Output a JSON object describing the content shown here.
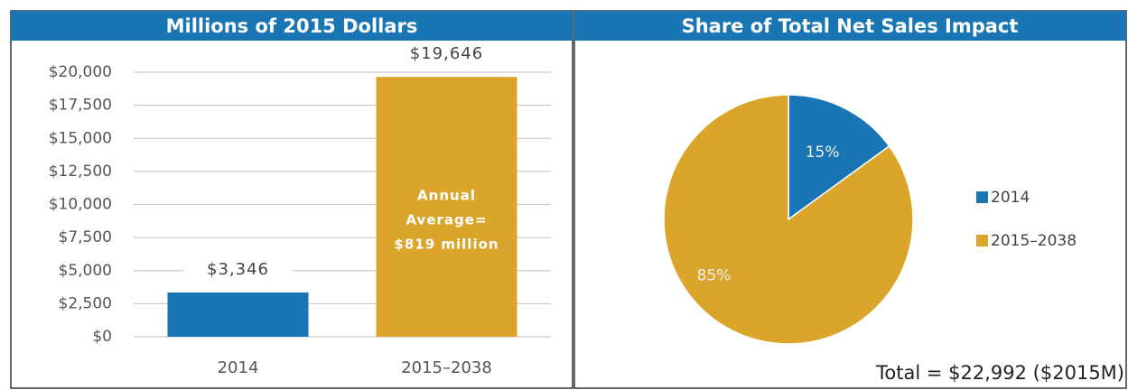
{
  "chart_data": [
    {
      "type": "bar",
      "title": "Millions of 2015 Dollars",
      "categories": [
        "2014",
        "2015–2038"
      ],
      "values": [
        3346,
        19646
      ],
      "value_labels": [
        "$3,346",
        "$19,646"
      ],
      "colors": [
        "#1a75b4",
        "#daa52a"
      ],
      "annotation_lines": [
        "Annual",
        "Average=",
        "$819 million"
      ],
      "ylim": [
        0,
        20000
      ],
      "yticks": [
        {
          "value": 0,
          "label": "$0"
        },
        {
          "value": 2500,
          "label": "$2,500"
        },
        {
          "value": 5000,
          "label": "$5,000"
        },
        {
          "value": 7500,
          "label": "$7,500"
        },
        {
          "value": 10000,
          "label": "$10,000"
        },
        {
          "value": 12500,
          "label": "$12,500"
        },
        {
          "value": 15000,
          "label": "$15,000"
        },
        {
          "value": 17500,
          "label": "$17,500"
        },
        {
          "value": 20000,
          "label": "$20,000"
        }
      ],
      "grid": true
    },
    {
      "type": "pie",
      "title": "Share of Total Net Sales Impact",
      "categories": [
        "2014",
        "2015–2038"
      ],
      "values": [
        15,
        85
      ],
      "value_labels": [
        "15%",
        "85%"
      ],
      "colors": [
        "#1a75b4",
        "#daa52a"
      ],
      "annotation": "Total = $22,992 ($2015M)",
      "legend": "right"
    }
  ]
}
